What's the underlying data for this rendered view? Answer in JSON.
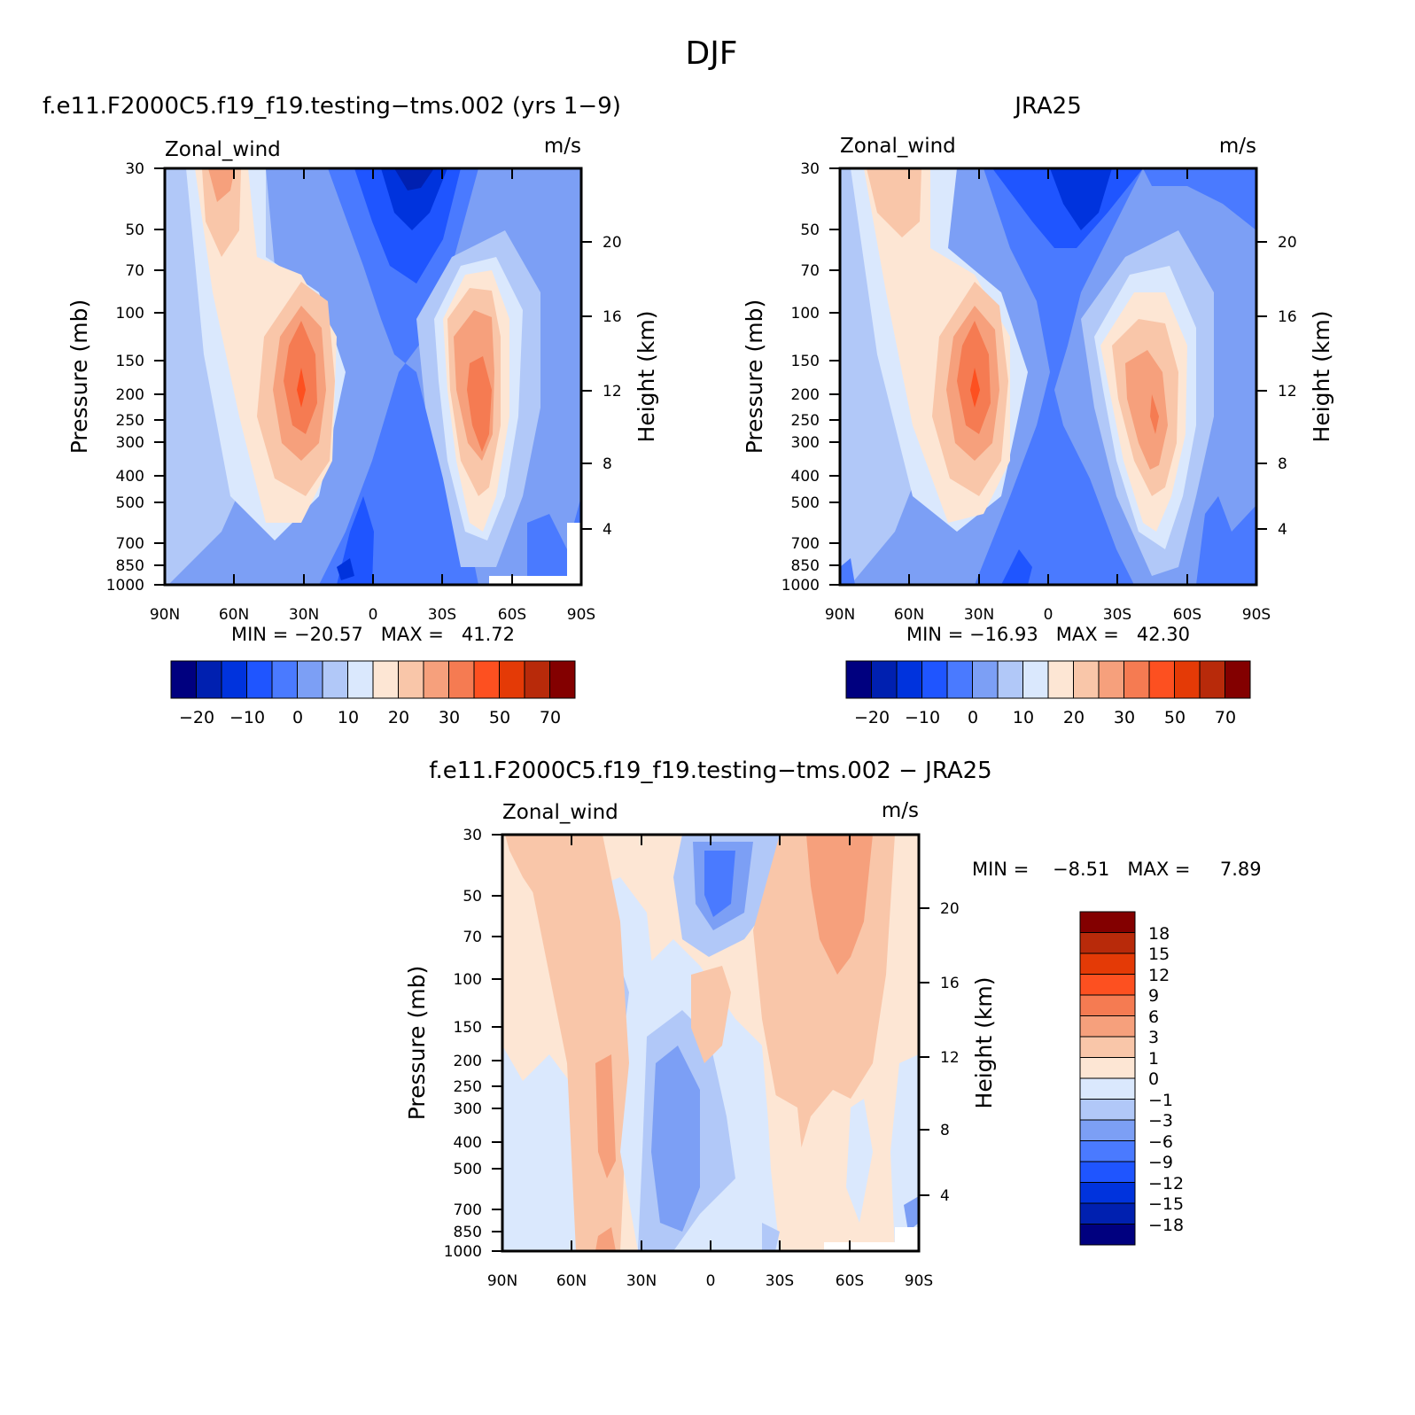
{
  "title": "DJF",
  "colors": {
    "levels12": [
      "#00007f",
      "#0020b0",
      "#0033dd",
      "#1f55ff",
      "#4a7aff",
      "#7c9ff5",
      "#b1c8f8",
      "#dae8fd",
      "#fde6d4",
      "#f9c6a9",
      "#f6a07c",
      "#f57b52",
      "#fd5020",
      "#e43a06",
      "#b82a0a",
      "#830000"
    ],
    "levels_diff": [
      "#00007f",
      "#0020b0",
      "#0033dd",
      "#1f55ff",
      "#4a7aff",
      "#7c9ff5",
      "#b1c8f8",
      "#dae8fd",
      "#fde6d4",
      "#f9c6a9",
      "#f6a07c",
      "#f57b52",
      "#fd5020",
      "#e43a06",
      "#b82a0a",
      "#830000"
    ]
  },
  "panels": [
    {
      "title": "f.e11.F2000C5.f19_f19.testing−tms.002 (yrs 1−9)",
      "left_label": "Zonal_wind",
      "right_label": "m/s",
      "ylabel": "Pressure (mb)",
      "ylabel_right": "Height (km)",
      "minmax": "MIN = −20.57   MAX =   41.72"
    },
    {
      "title": "JRA25",
      "left_label": "Zonal_wind",
      "right_label": "m/s",
      "ylabel": "Pressure (mb)",
      "ylabel_right": "Height (km)",
      "minmax": "MIN = −16.93   MAX =   42.30"
    },
    {
      "title": "f.e11.F2000C5.f19_f19.testing−tms.002 − JRA25",
      "left_label": "Zonal_wind",
      "right_label": "m/s",
      "ylabel": "Pressure (mb)",
      "ylabel_right": "Height (km)",
      "minmax": "MIN =    −8.51   MAX =     7.89"
    }
  ],
  "axes": {
    "x_ticks": [
      "90N",
      "60N",
      "30N",
      "0",
      "30S",
      "60S",
      "90S"
    ],
    "p_ticks": [
      "30",
      "50",
      "70",
      "100",
      "150",
      "200",
      "250",
      "300",
      "400",
      "500",
      "700",
      "850",
      "1000"
    ],
    "z_ticks": [
      "20",
      "16",
      "12",
      "8",
      "4"
    ]
  },
  "colorbar_main": {
    "labels": [
      "−20",
      "−10",
      "0",
      "10",
      "20",
      "30",
      "50",
      "70"
    ]
  },
  "colorbar_diff": {
    "labels": [
      "18",
      "15",
      "12",
      "9",
      "6",
      "3",
      "1",
      "0",
      "−1",
      "−3",
      "−6",
      "−9",
      "−12",
      "−15",
      "−18"
    ]
  },
  "chart_data": [
    {
      "type": "heatmap",
      "title": "f.e11.F2000C5.f19_f19.testing−tms.002 (yrs 1−9)",
      "variable": "Zonal_wind",
      "units": "m/s",
      "x": [
        "90N",
        "60N",
        "30N",
        "0",
        "30S",
        "60S",
        "90S"
      ],
      "y_pressure_mb": [
        30,
        50,
        70,
        100,
        150,
        200,
        250,
        300,
        400,
        500,
        700,
        850,
        1000
      ],
      "min": -20.57,
      "max": 41.72,
      "features": [
        {
          "lat": 30,
          "p_mb": 200,
          "value": 40
        },
        {
          "lat": -50,
          "p_mb": 200,
          "value": 35
        },
        {
          "lat": -15,
          "p_mb": 30,
          "value": -20
        },
        {
          "lat": 70,
          "p_mb": 30,
          "value": 20
        }
      ]
    },
    {
      "type": "heatmap",
      "title": "JRA25",
      "variable": "Zonal_wind",
      "units": "m/s",
      "x": [
        "90N",
        "60N",
        "30N",
        "0",
        "30S",
        "60S",
        "90S"
      ],
      "y_pressure_mb": [
        30,
        50,
        70,
        100,
        150,
        200,
        250,
        300,
        400,
        500,
        700,
        850,
        1000
      ],
      "min": -16.93,
      "max": 42.3,
      "features": [
        {
          "lat": 30,
          "p_mb": 200,
          "value": 40
        },
        {
          "lat": -47,
          "p_mb": 250,
          "value": 40
        },
        {
          "lat": -15,
          "p_mb": 30,
          "value": -15
        },
        {
          "lat": 60,
          "p_mb": 50,
          "value": 20
        }
      ]
    },
    {
      "type": "heatmap",
      "title": "f.e11.F2000C5.f19_f19.testing−tms.002 − JRA25",
      "variable": "Zonal_wind",
      "units": "m/s",
      "x": [
        "90N",
        "60N",
        "30N",
        "0",
        "30S",
        "60S",
        "90S"
      ],
      "y_pressure_mb": [
        30,
        50,
        70,
        100,
        150,
        200,
        250,
        300,
        400,
        500,
        700,
        850,
        1000
      ],
      "min": -8.51,
      "max": 7.89,
      "features": [
        {
          "lat": -55,
          "p_mb": 50,
          "value": 6
        },
        {
          "lat": 0,
          "p_mb": 50,
          "value": -9
        },
        {
          "lat": 20,
          "p_mb": 400,
          "value": -6
        },
        {
          "lat": 75,
          "p_mb": 40,
          "value": 3
        }
      ]
    }
  ]
}
